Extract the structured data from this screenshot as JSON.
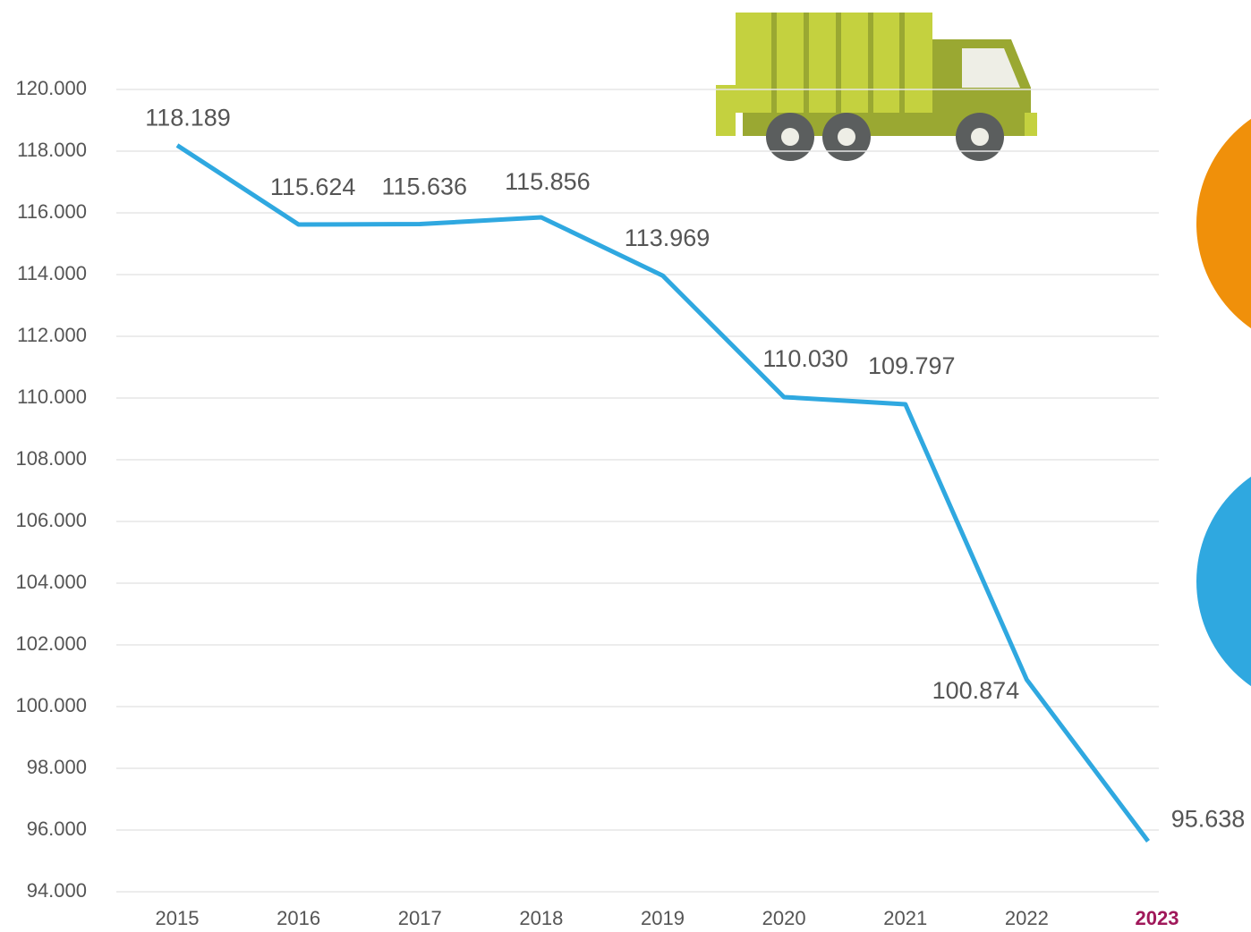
{
  "chart_data": {
    "type": "line",
    "categories": [
      "2015",
      "2016",
      "2017",
      "2018",
      "2019",
      "2020",
      "2021",
      "2022",
      "2023"
    ],
    "series": [
      {
        "color": "#2fa8e0",
        "values": [
          118189,
          115624,
          115636,
          115856,
          113969,
          110030,
          109797,
          100874,
          95638
        ],
        "value_labels": [
          "118.189",
          "115.624",
          "115.636",
          "115.856",
          "113.969",
          "110.030",
          "109.797",
          "100.874",
          "95.638"
        ]
      }
    ],
    "ylim": [
      94000,
      120000
    ],
    "yticks": [
      {
        "value": 94000,
        "label": "94.000"
      },
      {
        "value": 96000,
        "label": "96.000"
      },
      {
        "value": 98000,
        "label": "98.000"
      },
      {
        "value": 100000,
        "label": "100.000"
      },
      {
        "value": 102000,
        "label": "102.000"
      },
      {
        "value": 104000,
        "label": "104.000"
      },
      {
        "value": 106000,
        "label": "106.000"
      },
      {
        "value": 108000,
        "label": "108.000"
      },
      {
        "value": 110000,
        "label": "110.000"
      },
      {
        "value": 112000,
        "label": "112.000"
      },
      {
        "value": 114000,
        "label": "114.000"
      },
      {
        "value": 116000,
        "label": "116.000"
      },
      {
        "value": 118000,
        "label": "118.000"
      },
      {
        "value": 120000,
        "label": "120.000"
      }
    ],
    "grid": true,
    "highlight_category_color": "#a0185a"
  }
}
